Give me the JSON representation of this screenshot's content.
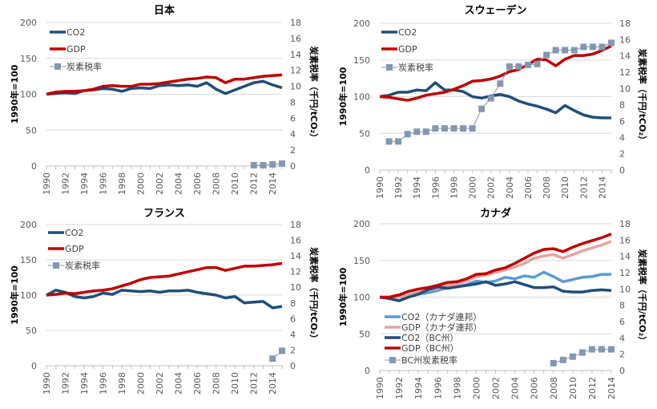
{
  "colors": {
    "co2": "#1f4e79",
    "gdp": "#c00000",
    "tax": "#8497b0",
    "co2_federal": "#5b9bd5",
    "gdp_federal": "#e6a3a3",
    "grid": "#d9d9d9"
  },
  "chart_data": [
    {
      "type": "line",
      "title": "日本",
      "ylabel": "1990年=100",
      "y2label": "炭素税率（千円/tCO₂）",
      "ylim": [
        0,
        200
      ],
      "y2lim": [
        0,
        18
      ],
      "yticks": [
        "0",
        "50",
        "100",
        "150",
        "200"
      ],
      "y2ticks": [
        "0",
        "2",
        "4",
        "6",
        "8",
        "10",
        "12",
        "14",
        "16",
        "18"
      ],
      "xticks": [
        "1990",
        "1992",
        "1994",
        "1996",
        "1998",
        "2000",
        "2002",
        "2004",
        "2006",
        "2008",
        "2010",
        "2012",
        "2014"
      ],
      "x": [
        1990,
        1991,
        1992,
        1993,
        1994,
        1995,
        1996,
        1997,
        1998,
        1999,
        2000,
        2001,
        2002,
        2003,
        2004,
        2005,
        2006,
        2007,
        2008,
        2009,
        2010,
        2011,
        2012,
        2013,
        2014,
        2015
      ],
      "legend_position": "top-left",
      "grid": true,
      "series": [
        {
          "name": "CO2",
          "color_key": "co2",
          "axis": "left",
          "values": [
            100,
            101,
            102,
            101,
            105,
            106,
            108,
            107,
            104,
            108,
            109,
            108,
            112,
            113,
            112,
            113,
            111,
            116,
            107,
            101,
            106,
            111,
            116,
            118,
            113,
            109
          ]
        },
        {
          "name": "GDP",
          "color_key": "gdp",
          "axis": "left",
          "values": [
            100,
            103,
            104,
            104,
            105,
            107,
            111,
            112,
            111,
            111,
            114,
            114,
            115,
            117,
            119,
            121,
            122,
            124,
            123,
            116,
            121,
            121,
            123,
            125,
            126,
            127
          ]
        },
        {
          "name": "炭素税率",
          "color_key": "tax",
          "axis": "right",
          "marker": "square",
          "values": [
            null,
            null,
            null,
            null,
            null,
            null,
            null,
            null,
            null,
            null,
            null,
            null,
            null,
            null,
            null,
            null,
            null,
            null,
            null,
            null,
            null,
            null,
            0.1,
            0.1,
            0.2,
            0.3
          ]
        }
      ]
    },
    {
      "type": "line",
      "title": "スウェーデン",
      "ylabel": "1990年=100",
      "y2label": "炭素税率（千円/tCO₂）",
      "ylim": [
        0,
        200
      ],
      "y2lim": [
        0,
        18
      ],
      "yticks": [
        "0",
        "50",
        "100",
        "150",
        "200"
      ],
      "y2ticks": [
        "0",
        "2",
        "4",
        "6",
        "8",
        "10",
        "12",
        "14",
        "16",
        "18"
      ],
      "xticks": [
        "1990",
        "1992",
        "1994",
        "1996",
        "1998",
        "2000",
        "2002",
        "2004",
        "2006",
        "2008",
        "2010",
        "2012",
        "2014"
      ],
      "x": [
        1990,
        1991,
        1992,
        1993,
        1994,
        1995,
        1996,
        1997,
        1998,
        1999,
        2000,
        2001,
        2002,
        2003,
        2004,
        2005,
        2006,
        2007,
        2008,
        2009,
        2010,
        2011,
        2012,
        2013,
        2014,
        2015
      ],
      "legend_position": "top-left",
      "grid": true,
      "series": [
        {
          "name": "CO2",
          "color_key": "co2",
          "axis": "left",
          "values": [
            100,
            102,
            106,
            106,
            109,
            108,
            119,
            109,
            109,
            107,
            100,
            98,
            101,
            103,
            100,
            94,
            90,
            87,
            83,
            78,
            88,
            81,
            75,
            72,
            71,
            71
          ]
        },
        {
          "name": "GDP",
          "color_key": "gdp",
          "axis": "left",
          "values": [
            100,
            99,
            97,
            95,
            98,
            102,
            104,
            106,
            110,
            115,
            121,
            122,
            124,
            128,
            134,
            137,
            144,
            151,
            150,
            142,
            151,
            156,
            156,
            158,
            163,
            169
          ]
        },
        {
          "name": "炭素税率",
          "color_key": "tax",
          "axis": "right",
          "marker": "square",
          "values": [
            null,
            3.5,
            3.5,
            4.4,
            4.7,
            4.7,
            5.1,
            5.1,
            5.1,
            5.1,
            5.1,
            7.5,
            8.8,
            10.6,
            12.7,
            12.7,
            12.9,
            13.0,
            14.1,
            14.7,
            14.7,
            14.7,
            15.1,
            15.1,
            15.1,
            15.6
          ]
        }
      ]
    },
    {
      "type": "line",
      "title": "フランス",
      "ylabel": "1990年=100",
      "y2label": "炭素税率（千円/tCO₂）",
      "ylim": [
        0,
        200
      ],
      "y2lim": [
        0,
        18
      ],
      "yticks": [
        "0",
        "50",
        "100",
        "150",
        "200"
      ],
      "y2ticks": [
        "0",
        "2",
        "4",
        "6",
        "8",
        "10",
        "12",
        "14",
        "16",
        "18"
      ],
      "xticks": [
        "1990",
        "1992",
        "1994",
        "1996",
        "1998",
        "2000",
        "2002",
        "2004",
        "2006",
        "2008",
        "2010",
        "2012",
        "2014"
      ],
      "x": [
        1990,
        1991,
        1992,
        1993,
        1994,
        1995,
        1996,
        1997,
        1998,
        1999,
        2000,
        2001,
        2002,
        2003,
        2004,
        2005,
        2006,
        2007,
        2008,
        2009,
        2010,
        2011,
        2012,
        2013,
        2014,
        2015
      ],
      "legend_position": "top-left",
      "grid": true,
      "series": [
        {
          "name": "CO2",
          "color_key": "co2",
          "axis": "left",
          "values": [
            100,
            107,
            104,
            98,
            96,
            98,
            103,
            101,
            107,
            106,
            105,
            106,
            104,
            106,
            106,
            107,
            104,
            102,
            100,
            96,
            98,
            89,
            90,
            91,
            82,
            84
          ]
        },
        {
          "name": "GDP",
          "color_key": "gdp",
          "axis": "left",
          "values": [
            100,
            101,
            103,
            102,
            104,
            106,
            107,
            109,
            113,
            117,
            122,
            125,
            126,
            127,
            130,
            133,
            136,
            139,
            139,
            135,
            138,
            141,
            141,
            142,
            143,
            145
          ]
        },
        {
          "name": "炭素税率",
          "color_key": "tax",
          "axis": "right",
          "marker": "square",
          "values": [
            null,
            null,
            null,
            null,
            null,
            null,
            null,
            null,
            null,
            null,
            null,
            null,
            null,
            null,
            null,
            null,
            null,
            null,
            null,
            null,
            null,
            null,
            null,
            null,
            0.9,
            1.9
          ]
        }
      ]
    },
    {
      "type": "line",
      "title": "カナダ",
      "ylabel": "1990年=100",
      "y2label": "炭素税率（千円/tCO₂）",
      "ylim": [
        0,
        200
      ],
      "y2lim": [
        0,
        18
      ],
      "yticks": [
        "0",
        "50",
        "100",
        "150",
        "200"
      ],
      "y2ticks": [
        "0",
        "2",
        "4",
        "6",
        "8",
        "10",
        "12",
        "14",
        "16",
        "18"
      ],
      "xticks": [
        "1990",
        "1992",
        "1994",
        "1996",
        "1998",
        "2000",
        "2002",
        "2004",
        "2006",
        "2008",
        "2010",
        "2012",
        "2014"
      ],
      "x": [
        1990,
        1991,
        1992,
        1993,
        1994,
        1995,
        1996,
        1997,
        1998,
        1999,
        2000,
        2001,
        2002,
        2003,
        2004,
        2005,
        2006,
        2007,
        2008,
        2009,
        2010,
        2011,
        2012,
        2013,
        2014
      ],
      "legend_position": "bottom-left",
      "grid": true,
      "series": [
        {
          "name": "CO2（カナダ連邦）",
          "color_key": "co2_federal",
          "axis": "left",
          "values": [
            100,
            98,
            100,
            101,
            104,
            106,
            109,
            113,
            114,
            117,
            122,
            120,
            122,
            127,
            125,
            129,
            127,
            134,
            128,
            121,
            124,
            127,
            128,
            131,
            131
          ]
        },
        {
          "name": "GDP（カナダ連邦）",
          "color_key": "gdp_federal",
          "axis": "left",
          "values": [
            100,
            99,
            100,
            103,
            107,
            109,
            112,
            116,
            118,
            122,
            128,
            130,
            134,
            137,
            141,
            146,
            153,
            156,
            158,
            153,
            158,
            163,
            167,
            171,
            176
          ]
        },
        {
          "name": "CO2（BC州）",
          "color_key": "co2",
          "axis": "left",
          "values": [
            100,
            98,
            95,
            100,
            104,
            110,
            114,
            112,
            114,
            116,
            118,
            121,
            116,
            118,
            121,
            117,
            113,
            113,
            114,
            108,
            107,
            107,
            109,
            110,
            109
          ]
        },
        {
          "name": "GDP（BC州）",
          "color_key": "gdp",
          "axis": "left",
          "values": [
            100,
            100,
            103,
            108,
            111,
            113,
            116,
            120,
            121,
            125,
            131,
            132,
            137,
            140,
            146,
            153,
            160,
            165,
            166,
            162,
            168,
            173,
            177,
            181,
            186
          ]
        },
        {
          "name": "BC州炭素税率",
          "color_key": "tax",
          "axis": "right",
          "marker": "square",
          "values": [
            null,
            null,
            null,
            null,
            null,
            null,
            null,
            null,
            null,
            null,
            null,
            null,
            null,
            null,
            null,
            null,
            null,
            null,
            0.9,
            1.3,
            1.7,
            2.2,
            2.6,
            2.6,
            2.6
          ]
        }
      ]
    }
  ]
}
